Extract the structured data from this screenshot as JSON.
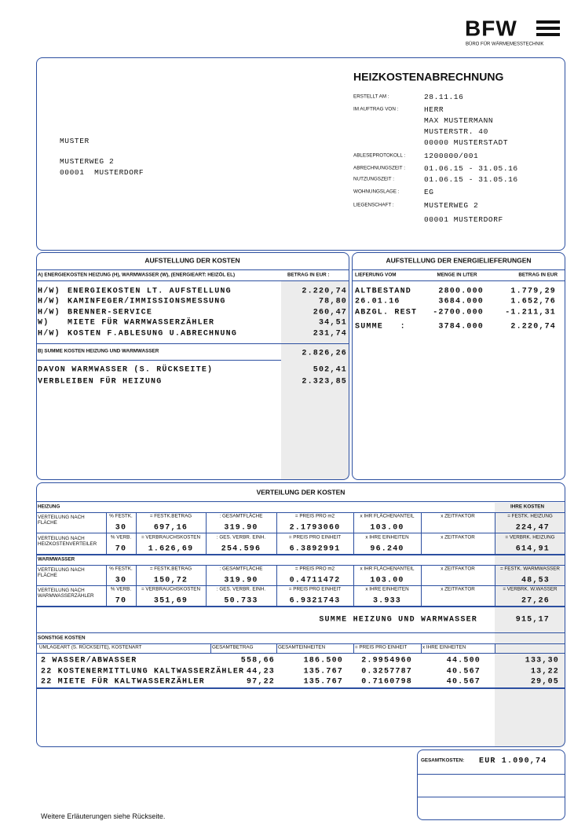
{
  "header": {
    "logo": "BFW",
    "logo_subtitle": "BÜRO FÜR WÄRMEMESSTECHNIK"
  },
  "address": [
    "MUSTER",
    "MUSTERWEG 2",
    "00001  MUSTERDORF"
  ],
  "invoice": {
    "title": "HEIZKOSTENABRECHNUNG",
    "fields": [
      {
        "label": "ERSTELLT AM :",
        "value": [
          "28.11.16"
        ]
      },
      {
        "label": "IM AUFTRAG VON :",
        "value": [
          "HERR",
          "MAX MUSTERMANN",
          "MUSTERSTR. 40",
          "00000 MUSTERSTADT"
        ]
      },
      {
        "label": "ABLESEPROTOKOLL :",
        "value": [
          "1200000/001"
        ]
      },
      {
        "label": "ABRECHNUNGSZEIT :",
        "value": [
          "01.06.15 - 31.05.16"
        ]
      },
      {
        "label": "NUTZUNGSZEIT :",
        "value": [
          "01.06.15 - 31.05.16"
        ]
      },
      {
        "label": "WOHNUNGSLAGE :",
        "value": [
          "EG"
        ]
      },
      {
        "label": "LIEGENSCHAFT :",
        "value": [
          "MUSTERWEG 2",
          "00001 MUSTERDORF"
        ]
      }
    ]
  },
  "costs": {
    "title": "AUFSTELLUNG DER KOSTEN",
    "header": "A) ENERGIEKOSTEN HEIZUNG (H), WARMWASSER (W), (ENERGIEART: HEIZÖL EL)",
    "amount_header": "BETRAG IN EUR :",
    "rows": [
      [
        "H/W)",
        "ENERGIEKOSTEN LT. AUFSTELLUNG",
        "2.220,74"
      ],
      [
        "H/W)",
        "KAMINFEGER/IMMISSIONSMESSUNG",
        "78,80"
      ],
      [
        "H/W)",
        "BRENNER-SERVICE",
        "260,47"
      ],
      [
        "W)",
        "MIETE FÜR WARMWASSERZÄHLER",
        "34,51"
      ],
      [
        "H/W)",
        "KOSTEN F.ABLESUNG U.ABRECHNUNG",
        "231,74"
      ]
    ],
    "subtotal_label": "B) SUMME KOSTEN HEIZUNG UND WARMWASSER",
    "subtotal": "2.826,26",
    "split": [
      [
        "DAVON WARMWASSER (S. RÜCKSEITE)",
        "502,41"
      ],
      [
        "VERBLEIBEN FÜR HEIZUNG",
        "2.323,85"
      ]
    ]
  },
  "energy": {
    "title": "AUFSTELLUNG DER ENERGIELIEFERUNGEN",
    "headers": [
      "LIEFERUNG VOM",
      "MENGE IN LITER",
      "BETRAG IN EUR"
    ],
    "rows": [
      [
        "ALTBESTAND",
        "2800.000",
        "1.779,29"
      ],
      [
        "26.01.16",
        "3684.000",
        "1.652,76"
      ],
      [
        "ABZGL. REST",
        "-2700.000",
        "-1.211,31"
      ]
    ],
    "sum": [
      "SUMME   :",
      "3784.000",
      "2.220,74"
    ]
  },
  "distribution": {
    "title": "VERTEILUNG DER KOSTEN",
    "your_costs": "IHRE KOSTEN",
    "sections": [
      {
        "title": "HEIZUNG",
        "rows": [
          {
            "label": "VERTEILUNG NACH FLÄCHE",
            "headers": [
              "% FESTK.",
              "= FESTK.BETRAG",
              ": GESAMTFLÄCHE",
              "= PREIS PRO m2",
              "x IHR FLÄCHENANTEIL",
              "x ZEITFAKTOR",
              "= FESTK. HEIZUNG"
            ],
            "values": [
              "30",
              "697,16",
              "319.90",
              "2.1793060",
              "103.00",
              null,
              "224,47"
            ]
          },
          {
            "label": "VERTEILUNG NACH HEIZKOSTENVERTEILER",
            "headers": [
              "% VERB.",
              "= VERBRAUCHSKOSTEN",
              ": GES. VERBR. EINH.",
              "= PREIS PRO EINHEIT",
              "x IHRE EINHEITEN",
              "x ZEITFAKTOR",
              "= VERBRK. HEIZUNG"
            ],
            "values": [
              "70",
              "1.626,69",
              "254.596",
              "6.3892991",
              "96.240",
              null,
              "614,91"
            ]
          }
        ]
      },
      {
        "title": "WARMWASSER",
        "rows": [
          {
            "label": "VERTEILUNG NACH FLÄCHE",
            "headers": [
              "% FESTK.",
              "= FESTK.BETRAG",
              ": GESAMTFLÄCHE",
              "= PREIS PRO m2",
              "x IHR FLÄCHENANTEIL",
              "x ZEITFAKTOR",
              "= FESTK. WARMWASSER"
            ],
            "values": [
              "30",
              "150,72",
              "319.90",
              "0.4711472",
              "103.00",
              null,
              "48,53"
            ]
          },
          {
            "label": "VERTEILUNG NACH WARMWASSERZÄHLER",
            "headers": [
              "% VERB.",
              "= VERBRAUCHSKOSTEN",
              ": GES. VERBR. EINH.",
              "= PREIS PRO EINHEIT",
              "x IHRE EINHEITEN",
              "x ZEITFAKTOR",
              "= VERBRK. W.WASSER"
            ],
            "values": [
              "70",
              "351,69",
              "50.733",
              "6.9321743",
              "3.933",
              null,
              "27,26"
            ]
          }
        ]
      }
    ],
    "sum_label": "SUMME HEIZUNG UND WARMWASSER",
    "sum": "915,17"
  },
  "other": {
    "title": "SONSTIGE KOSTEN",
    "headers": [
      "UMLAGEART (S. RÜCKSEITE), KOSTENART",
      "GESAMTBETRAG",
      "GESAMTEINHEITEN",
      "= PREIS PRO EINHEIT",
      "x IHRE EINHEITEN"
    ],
    "rows": [
      [
        "2 WASSER/ABWASSER",
        "558,66",
        "186.500",
        "2.9954960",
        "44.500",
        "133,30"
      ],
      [
        "22 KOSTENERMITTLUNG KALTWASSERZÄHLER",
        "44,23",
        "135.767",
        "0.3257787",
        "40.567",
        "13,22"
      ],
      [
        "22 MIETE FÜR KALTWASSERZÄHLER",
        "97,22",
        "135.767",
        "0.7160798",
        "40.567",
        "29,05"
      ]
    ]
  },
  "total": {
    "label": "GESAMTKOSTEN:",
    "value": "EUR 1.090,74"
  },
  "footer": "Weitere Erläuterungen siehe Rückseite."
}
